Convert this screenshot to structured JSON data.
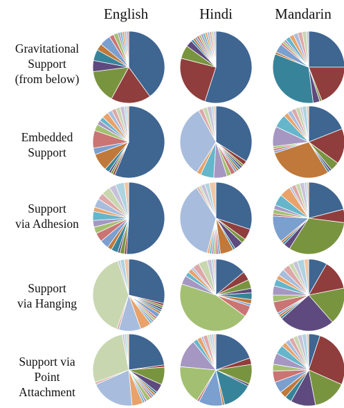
{
  "columns": [
    "English",
    "Hindi",
    "Mandarin"
  ],
  "rows": [
    {
      "label_lines": [
        "Gravitational",
        "Support",
        "(from below)"
      ]
    },
    {
      "label_lines": [
        "Embedded",
        "Support"
      ]
    },
    {
      "label_lines": [
        "Support",
        "via Adhesion"
      ]
    },
    {
      "label_lines": [
        "Support",
        "via Hanging"
      ]
    },
    {
      "label_lines": [
        "Support via",
        "Point",
        "Attachment"
      ]
    }
  ],
  "chart_data": {
    "type": "pie",
    "palette": [
      "#3f6591",
      "#8f3e3d",
      "#79943f",
      "#5e4a7e",
      "#37849a",
      "#c0793a",
      "#7b9fcf",
      "#ca7474",
      "#a3c072",
      "#a597c2",
      "#65b6cb",
      "#e8a26a",
      "#a8bddd",
      "#dea8a8",
      "#c8d7b0",
      "#c8c2d9",
      "#aed4e0",
      "#f0c6a6"
    ],
    "grid": [
      [
        [
          40,
          18,
          15,
          5,
          5,
          3,
          5,
          2,
          2,
          1,
          1,
          1,
          1,
          1
        ],
        [
          55,
          24,
          6,
          3,
          1,
          1,
          1,
          1,
          1,
          1,
          1,
          1,
          1,
          1,
          1,
          1
        ],
        [
          25,
          19,
          1,
          3,
          33,
          1,
          4,
          1,
          1,
          1,
          2,
          2,
          2,
          2,
          2,
          1
        ]
      ],
      [
        [
          57,
          1,
          1,
          1,
          2,
          8,
          3,
          8,
          3,
          2,
          2,
          3,
          2,
          2,
          2,
          2,
          1,
          1
        ],
        [
          34,
          2,
          1,
          1,
          1,
          1,
          1,
          2,
          2,
          6,
          6,
          2,
          33,
          2,
          2,
          2,
          1,
          1
        ],
        [
          19,
          16,
          4,
          1,
          1,
          29,
          1,
          1,
          1,
          9,
          6,
          2,
          2,
          2,
          2,
          1,
          2,
          1
        ]
      ],
      [
        [
          51,
          1,
          2,
          1,
          3,
          2,
          4,
          4,
          3,
          3,
          4,
          2,
          4,
          3,
          4,
          3,
          4,
          2
        ],
        [
          30,
          5,
          2,
          4,
          1,
          6,
          1,
          1,
          1,
          1,
          1,
          1,
          37,
          1,
          1,
          2,
          2,
          3
        ],
        [
          21,
          6,
          32,
          3,
          1,
          1,
          12,
          1,
          2,
          2,
          5,
          5,
          1,
          2,
          2,
          2,
          1,
          1
        ]
      ],
      [
        [
          29,
          1,
          1,
          1,
          1,
          1,
          2,
          1,
          1,
          1,
          1,
          5,
          10,
          1,
          40,
          1,
          2,
          2
        ],
        [
          14,
          4,
          4,
          2,
          3,
          2,
          1,
          5,
          45,
          4,
          2,
          2,
          1,
          3,
          4,
          2,
          1,
          1
        ],
        [
          8,
          13,
          16,
          24,
          1,
          1,
          1,
          5,
          3,
          4,
          3,
          2,
          3,
          3,
          2,
          2,
          3,
          2
        ]
      ],
      [
        [
          23,
          1,
          8,
          4,
          1,
          1,
          1,
          1,
          2,
          1,
          1,
          5,
          20,
          1,
          28,
          1,
          1,
          1
        ],
        [
          20,
          3,
          9,
          1,
          14,
          1,
          11,
          1,
          18,
          13,
          2,
          2,
          1,
          2,
          1,
          1,
          1,
          1
        ],
        [
          5,
          26,
          15,
          11,
          3,
          3,
          5,
          5,
          3,
          5,
          4,
          2,
          2,
          2,
          2,
          2,
          2,
          1
        ]
      ]
    ]
  }
}
